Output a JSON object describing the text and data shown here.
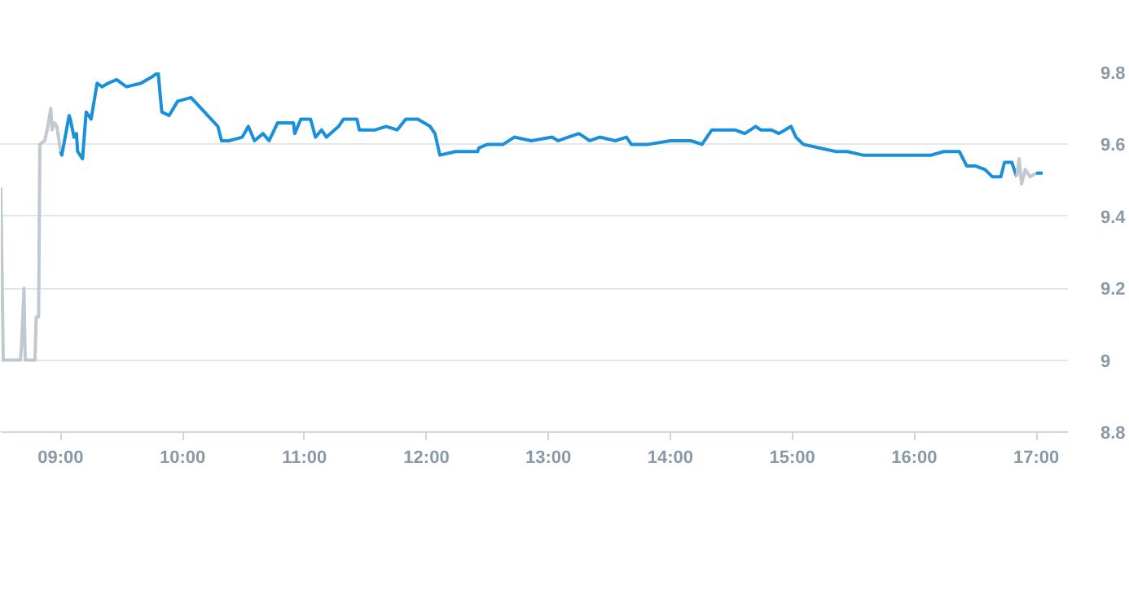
{
  "chart_data": {
    "type": "line",
    "xlim": [
      8.51,
      17.26
    ],
    "ylim": [
      8.8,
      9.8
    ],
    "xticks": [
      {
        "value": 9,
        "label": "09:00"
      },
      {
        "value": 10,
        "label": "10:00"
      },
      {
        "value": 11,
        "label": "11:00"
      },
      {
        "value": 12,
        "label": "12:00"
      },
      {
        "value": 13,
        "label": "13:00"
      },
      {
        "value": 14,
        "label": "14:00"
      },
      {
        "value": 15,
        "label": "15:00"
      },
      {
        "value": 16,
        "label": "16:00"
      },
      {
        "value": 17,
        "label": "17:00"
      }
    ],
    "yticks": [
      8.8,
      9,
      9.2,
      9.4,
      9.6,
      9.8
    ],
    "grid": "y",
    "marker": "none",
    "series": [
      {
        "color": "#c0c8d0",
        "x": [
          8.51,
          8.53,
          8.67,
          8.68,
          8.7,
          8.71,
          8.79,
          8.8,
          8.82,
          8.83,
          8.87,
          8.89,
          8.92,
          8.93,
          8.95,
          8.97,
          9.0
        ],
        "values": [
          9.48,
          9.0,
          9.0,
          9.04,
          9.2,
          9.0,
          9.0,
          9.12,
          9.12,
          9.6,
          9.61,
          9.64,
          9.7,
          9.64,
          9.66,
          9.65,
          9.58
        ]
      },
      {
        "color": "#1a90db",
        "x": [
          9.0,
          9.01,
          9.07,
          9.08,
          9.11,
          9.13,
          9.14,
          9.18,
          9.21,
          9.25,
          9.3,
          9.34,
          9.39,
          9.46,
          9.54,
          9.66,
          9.76,
          9.8,
          9.83,
          9.89,
          9.96,
          10.07,
          10.18,
          10.29,
          10.32,
          10.38,
          10.49,
          10.54,
          10.59,
          10.66,
          10.71,
          10.78,
          10.91,
          10.92,
          10.97,
          11.05,
          11.09,
          11.14,
          11.18,
          11.28,
          11.32,
          11.43,
          11.45,
          11.58,
          11.67,
          11.76,
          11.83,
          11.93,
          12.03,
          12.07,
          12.11,
          12.24,
          12.3,
          12.42,
          12.43,
          12.5,
          12.63,
          12.72,
          12.86,
          13.03,
          13.08,
          13.25,
          13.34,
          13.42,
          13.55,
          13.64,
          13.68,
          13.82,
          14.0,
          14.17,
          14.26,
          14.34,
          14.43,
          14.53,
          14.61,
          14.7,
          14.74,
          14.83,
          14.89,
          14.99,
          15.03,
          15.09,
          15.22,
          15.36,
          15.45,
          15.58,
          15.71,
          15.88,
          16.01,
          16.14,
          16.24,
          16.37,
          16.43,
          16.5,
          16.58,
          16.64,
          16.71,
          16.74,
          16.8,
          16.84
        ],
        "values": [
          9.58,
          9.57,
          9.68,
          9.67,
          9.62,
          9.63,
          9.58,
          9.56,
          9.69,
          9.67,
          9.77,
          9.76,
          9.77,
          9.78,
          9.76,
          9.77,
          9.79,
          9.8,
          9.69,
          9.68,
          9.72,
          9.73,
          9.69,
          9.65,
          9.61,
          9.61,
          9.62,
          9.65,
          9.61,
          9.63,
          9.61,
          9.66,
          9.66,
          9.63,
          9.67,
          9.67,
          9.62,
          9.64,
          9.62,
          9.65,
          9.67,
          9.67,
          9.64,
          9.64,
          9.65,
          9.64,
          9.67,
          9.67,
          9.65,
          9.63,
          9.57,
          9.58,
          9.58,
          9.58,
          9.59,
          9.6,
          9.6,
          9.62,
          9.61,
          9.62,
          9.61,
          9.63,
          9.61,
          9.62,
          9.61,
          9.62,
          9.6,
          9.6,
          9.61,
          9.61,
          9.6,
          9.64,
          9.64,
          9.64,
          9.63,
          9.65,
          9.64,
          9.64,
          9.63,
          9.65,
          9.62,
          9.6,
          9.59,
          9.58,
          9.58,
          9.57,
          9.57,
          9.57,
          9.57,
          9.57,
          9.58,
          9.58,
          9.54,
          9.54,
          9.53,
          9.51,
          9.51,
          9.55,
          9.55,
          9.51
        ]
      },
      {
        "color": "#c0c8d0",
        "x": [
          16.84,
          16.86,
          16.88,
          16.91,
          16.95,
          17.0
        ],
        "values": [
          9.51,
          9.56,
          9.49,
          9.53,
          9.51,
          9.52
        ]
      },
      {
        "color": "#1a90db",
        "line_style": "dashed",
        "x": [
          17.0,
          17.09
        ],
        "values": [
          9.52,
          9.52
        ]
      }
    ]
  }
}
